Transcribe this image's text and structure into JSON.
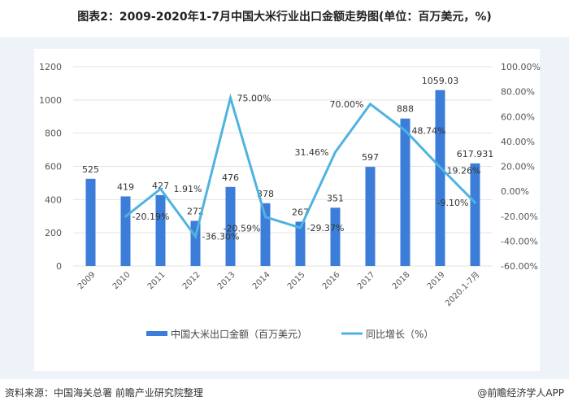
{
  "title": "图表2：2009-2020年1-7月中国大米行业出口金额走势图(单位：百万美元，%)",
  "footer": {
    "source": "资料来源：中国海关总署 前瞻产业研究院整理",
    "brand": "@前瞻经济学人APP"
  },
  "chart_data": {
    "type": "bar+line",
    "categories": [
      "2009",
      "2010",
      "2011",
      "2012",
      "2013",
      "2014",
      "2015",
      "2016",
      "2017",
      "2018",
      "2019",
      "2020.1-7月"
    ],
    "series": [
      {
        "name": "中国大米出口金额（百万美元）",
        "type": "bar",
        "axis": "left",
        "color": "#3b7dd8",
        "values": [
          525,
          419,
          427,
          272,
          476,
          378,
          267,
          351,
          597,
          888,
          1059.03,
          617.931
        ],
        "labels": [
          "525",
          "419",
          "427",
          "272",
          "476",
          "378",
          "267",
          "351",
          "597",
          "888",
          "1059.03",
          "617.931"
        ]
      },
      {
        "name": "同比增长（%）",
        "type": "line",
        "axis": "right",
        "color": "#4fb3e0",
        "values": [
          null,
          -20.19,
          1.91,
          -36.3,
          75.0,
          -20.59,
          -29.37,
          31.46,
          70.0,
          48.74,
          19.26,
          -9.1
        ],
        "labels": [
          "",
          "-20.19%",
          "1.91%",
          "-36.30%",
          "75.00%",
          "-20.59%",
          "-29.37%",
          "31.46%",
          "70.00%",
          "48.74%",
          "19.26%",
          "-9.10%"
        ]
      }
    ],
    "ylim_left": [
      0,
      1200
    ],
    "yticks_left": [
      "0",
      "200",
      "400",
      "600",
      "800",
      "1000",
      "1200"
    ],
    "ylim_right": [
      -60,
      100
    ],
    "yticks_right": [
      "-60.00%",
      "-40.00%",
      "-20.00%",
      "0.00%",
      "20.00%",
      "40.00%",
      "60.00%",
      "80.00%",
      "100.00%"
    ],
    "grid": true,
    "legend": "bottom"
  }
}
